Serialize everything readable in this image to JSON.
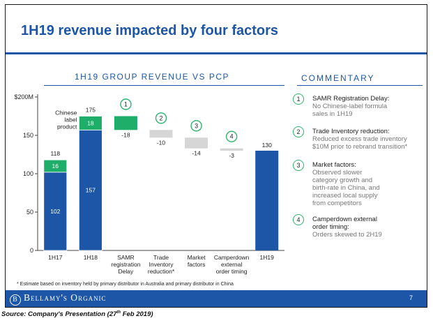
{
  "title": "1H19 revenue impacted by four factors",
  "chart_title": "1H19 GROUP REVENUE VS PCP",
  "commentary": {
    "title": "COMMENTARY",
    "items": [
      {
        "num": "1",
        "heading": [
          "SAMR Registration Delay:"
        ],
        "body": [
          "No Chinese-label formula",
          "sales in 1H19"
        ]
      },
      {
        "num": "2",
        "heading": [
          "Trade Inventory reduction:"
        ],
        "body": [
          "Reduced excess trade inventory",
          "$10M prior to rebrand transition*"
        ]
      },
      {
        "num": "3",
        "heading": [
          "Market factors:"
        ],
        "body": [
          "Observed slower",
          "category growth and",
          "birth-rate in China, and",
          "increased local supply",
          "from competitors"
        ]
      },
      {
        "num": "4",
        "heading": [
          "Camperdown external",
          "order timing:"
        ],
        "body": [
          "Orders skewed to 2H19"
        ]
      }
    ]
  },
  "footnote": "* Estimate based on inventory held by primary distributor in Australia and primary distributor in China",
  "footer": {
    "brand": "Bellamy's Organic",
    "logo_letter": "B",
    "page": "7"
  },
  "source": {
    "prefix": "Source: Company's Presentation (27",
    "sup": "th",
    "suffix": " Feb 2019)"
  },
  "colors": {
    "blue": "#1d56a6",
    "green": "#1fae6a",
    "gray": "#d6d6d6",
    "footer": "#1d56a6"
  },
  "chart_data": {
    "type": "bar",
    "subtype": "waterfall",
    "title": "1H19 GROUP REVENUE VS PCP",
    "y_tick_labels": [
      "0",
      "50",
      "100",
      "150",
      "$200M"
    ],
    "ylim": [
      0,
      200
    ],
    "yticks": [
      0,
      50,
      100,
      150,
      200
    ],
    "categories": [
      [
        "1H17"
      ],
      [
        "1H18"
      ],
      [
        "SAMR",
        "registration",
        "Delay"
      ],
      [
        "Trade",
        "Inventory",
        "reduction*"
      ],
      [
        "Market",
        "factors"
      ],
      [
        "Camperdown",
        "external",
        "order timing"
      ],
      [
        "1H19"
      ]
    ],
    "bars": [
      {
        "kind": "stack",
        "segments": [
          {
            "value": 102,
            "label": "102",
            "color": "blue"
          },
          {
            "value": 16,
            "label": "16",
            "color": "green"
          }
        ],
        "total_label": "118"
      },
      {
        "kind": "stack",
        "segments": [
          {
            "value": 157,
            "label": "157",
            "color": "blue"
          },
          {
            "value": 18,
            "label": "18",
            "color": "green"
          }
        ],
        "total_label": "175"
      },
      {
        "kind": "delta",
        "from": 175,
        "value": -18,
        "label": "-18",
        "color": "green",
        "badge": "1"
      },
      {
        "kind": "delta",
        "from": 157,
        "value": -10,
        "label": "-10",
        "color": "gray",
        "badge": "2"
      },
      {
        "kind": "delta",
        "from": 147,
        "value": -14,
        "label": "-14",
        "color": "gray",
        "badge": "3"
      },
      {
        "kind": "delta",
        "from": 133,
        "value": -3,
        "label": "-3",
        "color": "gray",
        "badge": "4"
      },
      {
        "kind": "total",
        "value": 130,
        "label": "130",
        "color": "blue"
      }
    ],
    "annotation": [
      "Chinese",
      "label",
      "product"
    ]
  }
}
